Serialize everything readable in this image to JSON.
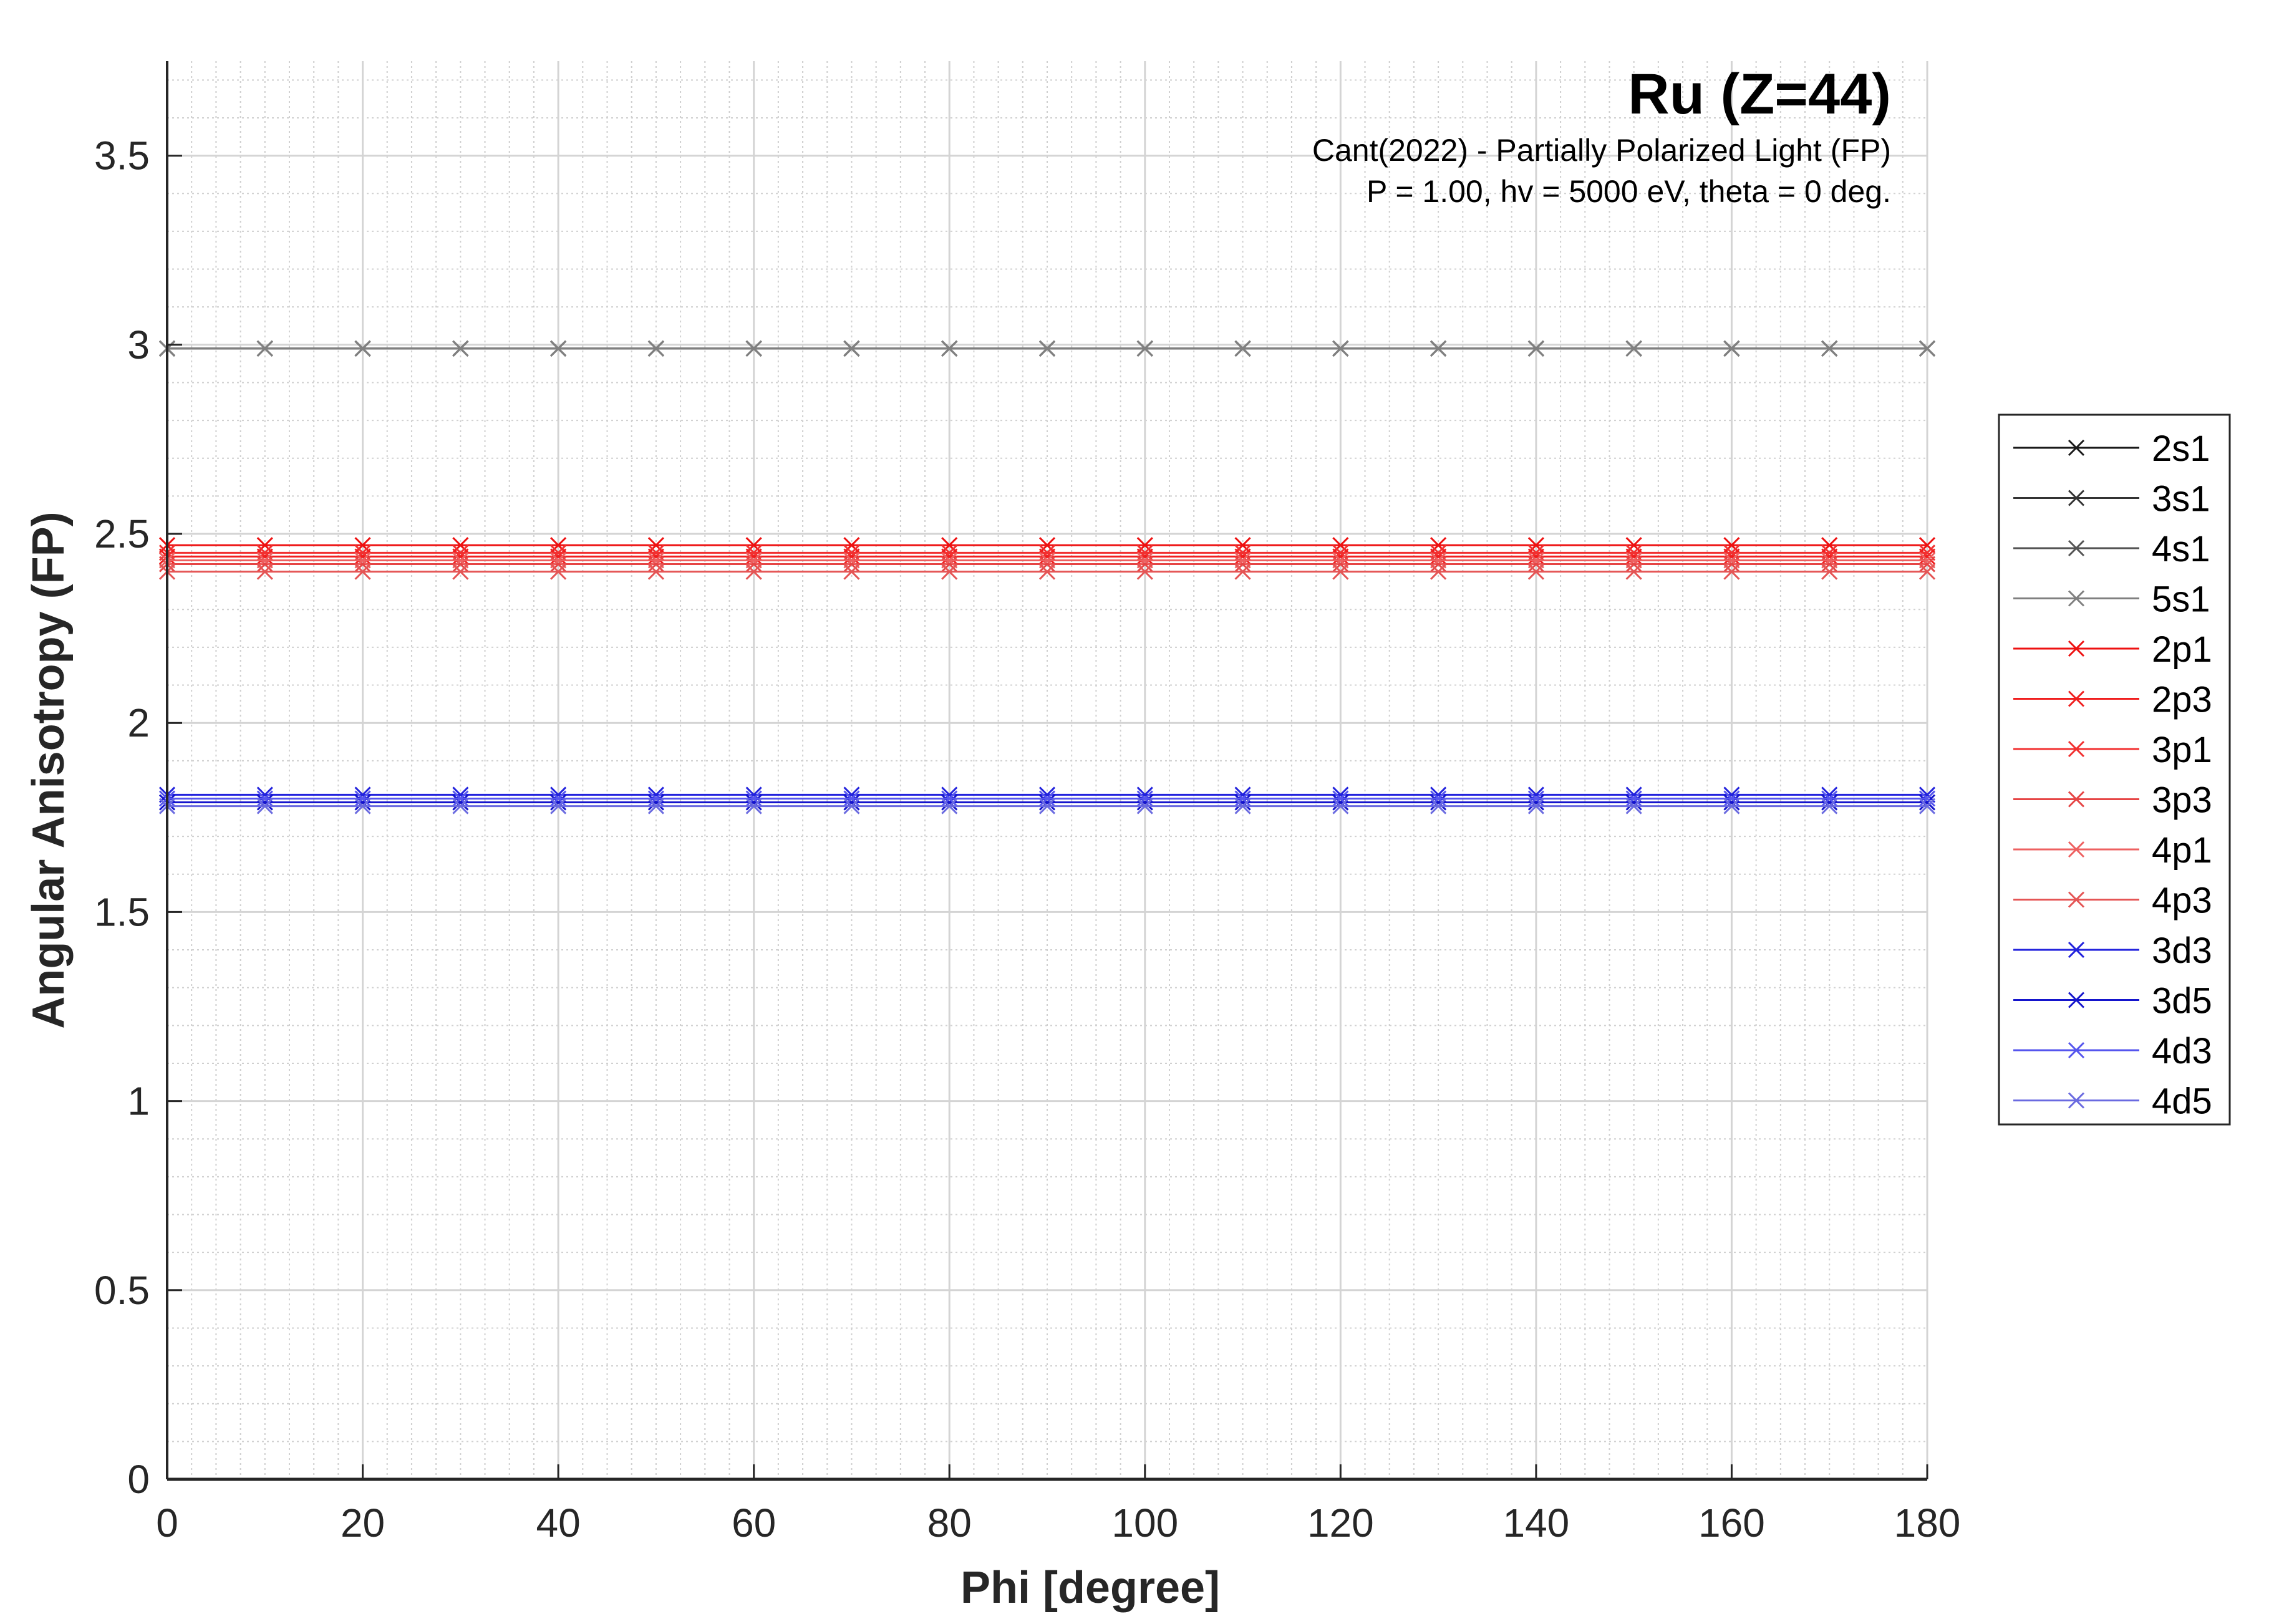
{
  "chart_data": {
    "type": "line",
    "title": "Ru (Z=44)",
    "subtitle_lines": [
      "Cant(2022) - Partially Polarized Light (FP)",
      "P = 1.00, hv = 5000 eV, theta = 0 deg."
    ],
    "xlabel": "Phi [degree]",
    "ylabel": "Angular Anisotropy (FP)",
    "xlim": [
      0,
      180
    ],
    "ylim": [
      0,
      3.75
    ],
    "xticks": [
      0,
      20,
      40,
      60,
      80,
      100,
      120,
      140,
      160,
      180
    ],
    "yticks": [
      0,
      0.5,
      1,
      1.5,
      2,
      2.5,
      3,
      3.5
    ],
    "xtick_labels": [
      "0",
      "20",
      "40",
      "60",
      "80",
      "100",
      "120",
      "140",
      "160",
      "180"
    ],
    "ytick_labels": [
      "0",
      "0.5",
      "1",
      "1.5",
      "2",
      "2.5",
      "3",
      "3.5"
    ],
    "grid": true,
    "minor_grid": true,
    "legend_position": "outside-right",
    "marker": "x",
    "x": [
      0,
      10,
      20,
      30,
      40,
      50,
      60,
      70,
      80,
      90,
      100,
      110,
      120,
      130,
      140,
      150,
      160,
      170,
      180
    ],
    "series": [
      {
        "name": "2s1",
        "color": "#1a1a1a",
        "value": 2.99
      },
      {
        "name": "3s1",
        "color": "#333333",
        "value": 2.99
      },
      {
        "name": "4s1",
        "color": "#555555",
        "value": 2.99
      },
      {
        "name": "5s1",
        "color": "#808080",
        "value": 2.99
      },
      {
        "name": "2p1",
        "color": "#ee1111",
        "value": 2.47
      },
      {
        "name": "2p3",
        "color": "#f01f1f",
        "value": 2.44
      },
      {
        "name": "3p1",
        "color": "#f23030",
        "value": 2.45
      },
      {
        "name": "3p3",
        "color": "#e64545",
        "value": 2.42
      },
      {
        "name": "4p1",
        "color": "#ee6060",
        "value": 2.43
      },
      {
        "name": "4p3",
        "color": "#e55555",
        "value": 2.4
      },
      {
        "name": "3d3",
        "color": "#2222dd",
        "value": 1.81
      },
      {
        "name": "3d5",
        "color": "#1515cc",
        "value": 1.79
      },
      {
        "name": "4d3",
        "color": "#5555ee",
        "value": 1.8
      },
      {
        "name": "4d5",
        "color": "#6a6ae0",
        "value": 1.78
      }
    ]
  }
}
